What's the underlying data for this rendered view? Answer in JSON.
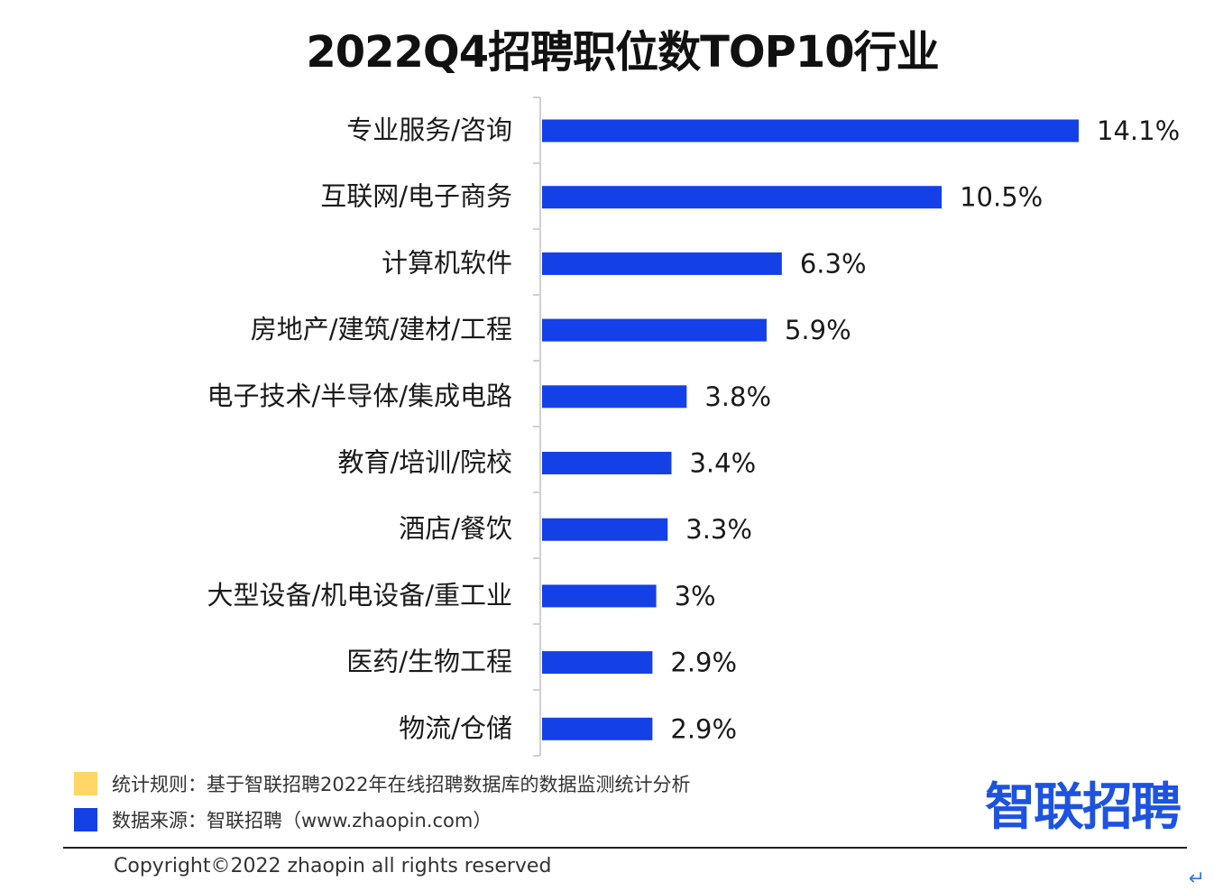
{
  "chart_data": {
    "type": "bar",
    "orientation": "horizontal",
    "title": "2022Q4招聘职位数TOP10行业",
    "categories": [
      "专业服务/咨询",
      "互联网/电子商务",
      "计算机软件",
      "房地产/建筑/建材/工程",
      "电子技术/半导体/集成电路",
      "教育/培训/院校",
      "酒店/餐饮",
      "大型设备/机电设备/重工业",
      "医药/生物工程",
      "物流/仓储"
    ],
    "values": [
      14.1,
      10.5,
      6.3,
      5.9,
      3.8,
      3.4,
      3.3,
      3,
      2.9,
      2.9
    ],
    "value_labels": [
      "14.1%",
      "10.5%",
      "6.3%",
      "5.9%",
      "3.8%",
      "3.4%",
      "3.3%",
      "3%",
      "2.9%",
      "2.9%"
    ],
    "xlim": [
      0,
      14.1
    ],
    "grid": false,
    "bar_color": "#1440e8"
  },
  "legend": {
    "rule_color": "#ffd666",
    "rule_text": "统计规则：基于智联招聘2022年在线招聘数据库的数据监测统计分析",
    "source_color": "#1440e8",
    "source_text": "数据来源：智联招聘（www.zhaopin.com）"
  },
  "logo": {
    "text": "智联招聘",
    "color": "#1d53e0"
  },
  "footer": {
    "copyright": "Copyright©2022 zhaopin all rights reserved"
  }
}
